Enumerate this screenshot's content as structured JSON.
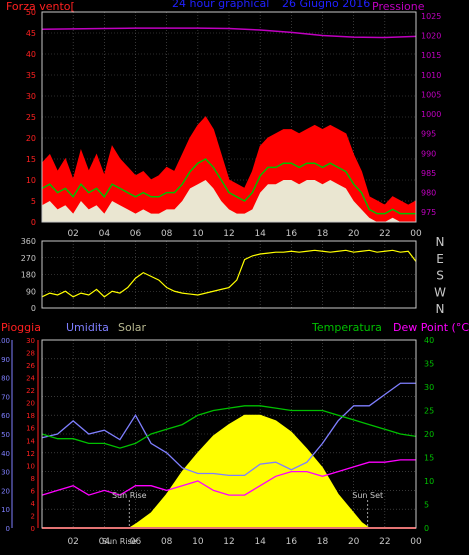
{
  "colors": {
    "background": "#000000",
    "frame": "#c8c8c8",
    "grid": "#5a5a5a",
    "wind_gust": "#ff0000",
    "wind_avg": "#00c000",
    "wind_min": "#e8ffe8",
    "pressure": "#c000c0",
    "direction": "#ffff00",
    "rain": "#ff2020",
    "humidity": "#7f7fff",
    "solar": "#ffff00",
    "temperature": "#00c000",
    "dew_point": "#ff00ff",
    "title": "#2020ff",
    "left_axis_red": "#ff2020",
    "right_axis_pressure": "#c000c0",
    "right_axis_green": "#00c000",
    "humidity_axis": "#7f7fff"
  },
  "chart_data": [
    {
      "type": "area",
      "title": "24 hour graphical",
      "title_date": "26 Giugno 2016",
      "left_label": "Forza vento[",
      "right_label": "Pressione",
      "x_ticks": [
        "02",
        "04",
        "06",
        "08",
        "10",
        "12",
        "14",
        "16",
        "18",
        "20",
        "22",
        "00"
      ],
      "x_range": [
        0,
        24
      ],
      "yleft_range": [
        0,
        50
      ],
      "yleft_ticks": [
        0,
        5,
        10,
        15,
        20,
        25,
        30,
        35,
        40,
        45,
        50
      ],
      "yright_range": [
        972.5,
        1026
      ],
      "yright_ticks": [
        975,
        980,
        985,
        990,
        995,
        1000,
        1005,
        1010,
        1015,
        1020,
        1025
      ],
      "series": [
        {
          "name": "gust",
          "x": [
            0,
            0.5,
            1,
            1.5,
            2,
            2.5,
            3,
            3.5,
            4,
            4.5,
            5,
            5.5,
            6,
            6.5,
            7,
            7.5,
            8,
            8.5,
            9,
            9.5,
            10,
            10.5,
            11,
            11.5,
            12,
            12.5,
            13,
            13.5,
            14,
            14.5,
            15,
            15.5,
            16,
            16.5,
            17,
            17.5,
            18,
            18.5,
            19,
            19.5,
            20,
            20.5,
            21,
            21.5,
            22,
            22.5,
            23,
            23.5,
            24
          ],
          "values": [
            14,
            16,
            12,
            15,
            10,
            17,
            12,
            16,
            11,
            18,
            15,
            13,
            11,
            12,
            10,
            11,
            13,
            12,
            16,
            20,
            23,
            25,
            22,
            16,
            10,
            9,
            8,
            12,
            18,
            20,
            21,
            22,
            22,
            21,
            22,
            23,
            22,
            23,
            22,
            21,
            16,
            12,
            6,
            5,
            4,
            6,
            5,
            4,
            5
          ]
        },
        {
          "name": "average",
          "x": [
            0,
            0.5,
            1,
            1.5,
            2,
            2.5,
            3,
            3.5,
            4,
            4.5,
            5,
            5.5,
            6,
            6.5,
            7,
            7.5,
            8,
            8.5,
            9,
            9.5,
            10,
            10.5,
            11,
            11.5,
            12,
            12.5,
            13,
            13.5,
            14,
            14.5,
            15,
            15.5,
            16,
            16.5,
            17,
            17.5,
            18,
            18.5,
            19,
            19.5,
            20,
            20.5,
            21,
            21.5,
            22,
            22.5,
            23,
            23.5,
            24
          ],
          "values": [
            8,
            9,
            7,
            8,
            6,
            9,
            7,
            8,
            6,
            9,
            8,
            7,
            6,
            7,
            6,
            6,
            7,
            7,
            9,
            12,
            14,
            15,
            13,
            10,
            7,
            6,
            5,
            7,
            11,
            13,
            13,
            14,
            14,
            13,
            14,
            14,
            13,
            14,
            13,
            12,
            9,
            7,
            3,
            2,
            2,
            3,
            2,
            2,
            2
          ]
        },
        {
          "name": "minimum",
          "x": [
            0,
            0.5,
            1,
            1.5,
            2,
            2.5,
            3,
            3.5,
            4,
            4.5,
            5,
            5.5,
            6,
            6.5,
            7,
            7.5,
            8,
            8.5,
            9,
            9.5,
            10,
            10.5,
            11,
            11.5,
            12,
            12.5,
            13,
            13.5,
            14,
            14.5,
            15,
            15.5,
            16,
            16.5,
            17,
            17.5,
            18,
            18.5,
            19,
            19.5,
            20,
            20.5,
            21,
            21.5,
            22,
            22.5,
            23,
            23.5,
            24
          ],
          "values": [
            4,
            5,
            3,
            4,
            2,
            5,
            3,
            4,
            2,
            5,
            4,
            3,
            2,
            3,
            2,
            2,
            3,
            3,
            5,
            8,
            9,
            10,
            8,
            5,
            3,
            2,
            2,
            3,
            7,
            9,
            9,
            10,
            10,
            9,
            10,
            10,
            9,
            10,
            9,
            8,
            5,
            3,
            1,
            0,
            0,
            1,
            0,
            0,
            0
          ]
        },
        {
          "name": "pressure",
          "x": [
            0,
            2,
            4,
            6,
            8,
            10,
            12,
            14,
            16,
            18,
            20,
            22,
            24
          ],
          "values": [
            1021.6,
            1021.7,
            1021.8,
            1021.9,
            1021.9,
            1021.9,
            1021.8,
            1021.4,
            1020.8,
            1020.0,
            1019.6,
            1019.5,
            1019.8
          ]
        }
      ]
    },
    {
      "type": "line",
      "x_ticks": [
        "02",
        "04",
        "06",
        "08",
        "10",
        "12",
        "14",
        "16",
        "18",
        "20",
        "22",
        "00"
      ],
      "x_range": [
        0,
        24
      ],
      "y_range": [
        0,
        360
      ],
      "y_ticks": [
        0,
        90,
        180,
        270,
        360
      ],
      "compass": [
        "N",
        "W",
        "S",
        "E",
        "N"
      ],
      "series": [
        {
          "name": "direction",
          "x": [
            0,
            0.5,
            1,
            1.5,
            2,
            2.5,
            3,
            3.5,
            4,
            4.5,
            5,
            5.5,
            6,
            6.5,
            7,
            7.5,
            8,
            8.5,
            9,
            9.5,
            10,
            10.5,
            11,
            11.5,
            12,
            12.5,
            13,
            13.5,
            14,
            14.5,
            15,
            15.5,
            16,
            16.5,
            17,
            17.5,
            18,
            18.5,
            19,
            19.5,
            20,
            20.5,
            21,
            21.5,
            22,
            22.5,
            23,
            23.5,
            24
          ],
          "values": [
            60,
            80,
            70,
            90,
            60,
            80,
            70,
            100,
            60,
            90,
            80,
            110,
            160,
            190,
            170,
            150,
            110,
            90,
            80,
            75,
            70,
            80,
            90,
            100,
            110,
            150,
            260,
            280,
            290,
            295,
            300,
            300,
            305,
            300,
            305,
            310,
            305,
            300,
            305,
            310,
            300,
            305,
            310,
            300,
            305,
            310,
            300,
            305,
            250
          ]
        }
      ]
    },
    {
      "type": "line",
      "label_rain": "Pioggia",
      "label_humidity": "Umidita",
      "label_solar": "Solar",
      "label_temperature": "Temperatura",
      "label_dewpoint": "Dew Point (°C)",
      "x_ticks": [
        "02",
        "04",
        "06",
        "08",
        "10",
        "12",
        "14",
        "16",
        "18",
        "20",
        "22",
        "00"
      ],
      "x_range": [
        0,
        24
      ],
      "y_humidity_range": [
        0,
        100
      ],
      "y_humidity_ticks": [
        0,
        10,
        20,
        30,
        40,
        50,
        60,
        70,
        80,
        90,
        100
      ],
      "y_rain_range": [
        0,
        30
      ],
      "y_rain_ticks": [
        0,
        2,
        4,
        6,
        8,
        10,
        12,
        14,
        16,
        18,
        20,
        22,
        24,
        26,
        28,
        30
      ],
      "y_temp_range": [
        0,
        40
      ],
      "y_temp_ticks": [
        0,
        5,
        10,
        15,
        20,
        25,
        30,
        35,
        40
      ],
      "sunrise_hour": 5.6,
      "sunset_hour": 20.9,
      "sunrise_label": "Sun Rise",
      "sunset_label": "Sun Set",
      "x_ticks_overlap": "Sun Rise",
      "series": [
        {
          "name": "humidity",
          "x": [
            0,
            1,
            2,
            3,
            4,
            5,
            6,
            7,
            8,
            9,
            10,
            11,
            12,
            13,
            14,
            15,
            16,
            17,
            18,
            19,
            20,
            21,
            22,
            23,
            24
          ],
          "values": [
            48,
            50,
            57,
            50,
            52,
            47,
            60,
            45,
            40,
            32,
            29,
            29,
            28,
            28,
            34,
            35,
            31,
            35,
            45,
            57,
            65,
            65,
            71,
            77,
            77
          ]
        },
        {
          "name": "solar",
          "x": [
            0,
            5.6,
            6,
            7,
            8,
            9,
            10,
            11,
            12,
            13,
            14,
            15,
            16,
            17,
            18,
            19,
            20,
            20.5,
            21,
            24
          ],
          "values": [
            0,
            0,
            2,
            8,
            18,
            30,
            40,
            49,
            55,
            60,
            60,
            57,
            51,
            42,
            32,
            18,
            8,
            3,
            0,
            0
          ]
        },
        {
          "name": "temperature",
          "x": [
            0,
            1,
            2,
            3,
            4,
            5,
            6,
            7,
            8,
            9,
            10,
            11,
            12,
            13,
            14,
            15,
            16,
            17,
            18,
            19,
            20,
            21,
            22,
            23,
            24
          ],
          "values": [
            20,
            19,
            19,
            18,
            18,
            17,
            18,
            20,
            21,
            22,
            24,
            25,
            25.5,
            26,
            26,
            25.5,
            25,
            25,
            25,
            24,
            23,
            22,
            21,
            20,
            19.5
          ]
        },
        {
          "name": "dew_point",
          "x": [
            0,
            1,
            2,
            3,
            4,
            5,
            6,
            7,
            8,
            9,
            10,
            11,
            12,
            13,
            14,
            15,
            16,
            17,
            18,
            19,
            20,
            21,
            22,
            23,
            24
          ],
          "values": [
            7,
            8,
            9,
            7,
            8,
            7,
            9,
            9,
            8,
            9,
            10,
            8,
            7,
            7,
            9,
            11,
            12,
            12,
            11,
            12,
            13,
            14,
            14,
            14.5,
            14.5
          ]
        },
        {
          "name": "rain",
          "x": [
            0,
            24
          ],
          "values": [
            0,
            0
          ]
        }
      ]
    }
  ]
}
